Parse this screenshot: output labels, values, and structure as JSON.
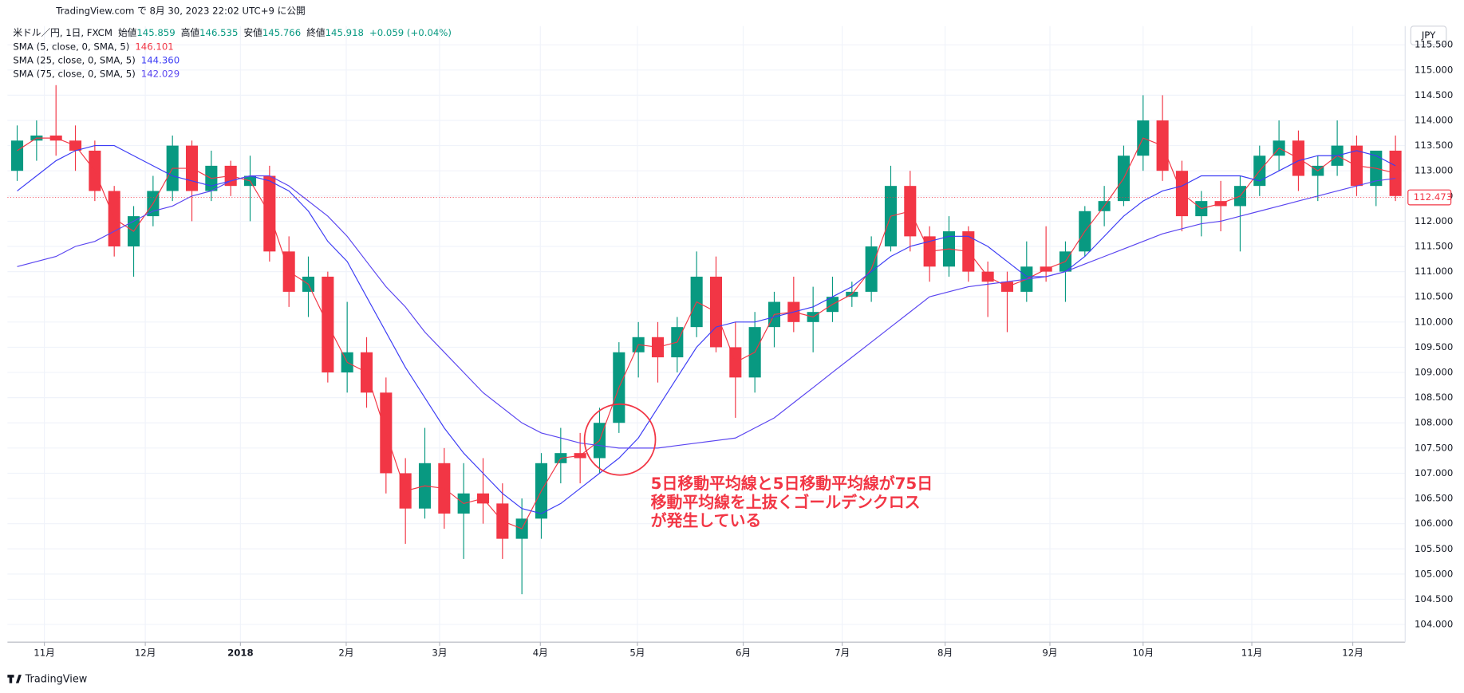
{
  "header": "TradingView.com で 8月 30, 2023 22:02 UTC+9 に公開",
  "footer": "TradingView",
  "chart_data": {
    "type": "candlestick",
    "title": "米ドル／円, 1日, FXCM",
    "stats": [
      {
        "label": "始値",
        "value": "145.859"
      },
      {
        "label": "高値",
        "value": "146.535"
      },
      {
        "label": "安値",
        "value": "145.766"
      },
      {
        "label": "終値",
        "value": "145.918"
      }
    ],
    "change": "+0.059 (+0.04%)",
    "currency": "JPY",
    "up_color": "#089981",
    "down_color": "#f23645",
    "open": [
      113.0,
      113.6,
      113.7,
      113.6,
      113.4,
      112.6,
      111.5,
      112.1,
      112.6,
      113.5,
      112.6,
      113.1,
      112.7,
      112.9,
      111.4,
      110.6,
      110.9,
      109.0,
      109.4,
      108.6,
      107.0,
      106.3,
      107.2,
      106.2,
      106.6,
      106.4,
      105.7,
      106.1,
      107.2,
      107.4,
      107.3,
      108.0,
      109.4,
      109.7,
      109.3,
      109.9,
      110.9,
      109.5,
      108.9,
      109.9,
      110.4,
      110.0,
      110.2,
      110.5,
      110.6,
      111.5,
      112.7,
      111.7,
      111.1,
      111.8,
      111.0,
      110.8,
      110.6,
      111.1,
      111.0,
      111.4,
      112.2,
      112.4,
      113.3,
      114.0,
      113.0,
      112.1,
      112.4,
      112.3,
      112.7,
      113.3,
      113.6,
      112.9,
      113.1,
      113.5,
      112.7,
      113.4
    ],
    "high": [
      113.9,
      114.0,
      114.7,
      113.9,
      113.6,
      112.7,
      112.3,
      112.9,
      113.7,
      113.6,
      113.4,
      113.2,
      113.3,
      113.1,
      111.7,
      111.3,
      111.0,
      110.4,
      109.7,
      108.9,
      107.3,
      107.9,
      107.5,
      107.2,
      107.3,
      106.8,
      106.5,
      107.4,
      107.9,
      107.8,
      108.3,
      109.6,
      110.0,
      110.0,
      110.1,
      111.4,
      111.3,
      110.0,
      110.2,
      110.6,
      110.9,
      110.7,
      110.9,
      110.8,
      111.7,
      113.1,
      113.0,
      111.9,
      112.1,
      111.9,
      111.2,
      111.0,
      111.6,
      111.9,
      111.6,
      112.3,
      112.7,
      113.5,
      114.5,
      114.5,
      113.2,
      112.6,
      112.8,
      112.9,
      113.5,
      114.0,
      113.8,
      113.3,
      114.0,
      113.7,
      113.3,
      113.7
    ],
    "low": [
      112.8,
      113.2,
      113.3,
      113.0,
      112.4,
      111.3,
      110.9,
      111.9,
      112.4,
      112.0,
      112.4,
      112.5,
      112.0,
      111.2,
      110.3,
      110.1,
      108.8,
      108.6,
      108.3,
      106.6,
      105.6,
      106.1,
      105.9,
      105.3,
      106.0,
      105.3,
      104.6,
      105.7,
      106.8,
      106.8,
      107.0,
      107.8,
      108.9,
      108.8,
      109.0,
      109.7,
      109.4,
      108.1,
      108.6,
      109.5,
      109.8,
      109.4,
      110.0,
      110.3,
      110.4,
      111.4,
      111.4,
      110.8,
      110.9,
      110.8,
      110.1,
      109.8,
      110.4,
      110.8,
      110.4,
      111.3,
      111.9,
      112.3,
      113.0,
      112.8,
      111.8,
      111.7,
      111.8,
      111.4,
      112.5,
      113.0,
      112.6,
      112.4,
      112.9,
      112.5,
      112.3,
      112.4
    ],
    "close": [
      113.6,
      113.7,
      113.6,
      113.4,
      112.6,
      111.5,
      112.1,
      112.6,
      113.5,
      112.6,
      113.1,
      112.7,
      112.9,
      111.4,
      110.6,
      110.9,
      109.0,
      109.4,
      108.6,
      107.0,
      106.3,
      107.2,
      106.2,
      106.6,
      106.4,
      105.7,
      106.1,
      107.2,
      107.4,
      107.3,
      108.0,
      109.4,
      109.7,
      109.3,
      109.9,
      110.9,
      109.5,
      108.9,
      109.9,
      110.4,
      110.0,
      110.2,
      110.5,
      110.6,
      111.5,
      112.7,
      111.7,
      111.1,
      111.8,
      111.0,
      110.8,
      110.6,
      111.1,
      111.0,
      111.4,
      112.2,
      112.4,
      113.3,
      114.0,
      113.0,
      112.1,
      112.4,
      112.3,
      112.7,
      113.3,
      113.6,
      112.9,
      113.1,
      113.5,
      112.7,
      113.4,
      112.5
    ],
    "overlays": [
      {
        "name": "SMA (5, close, 0, SMA, 5)",
        "legend_value": "146.101",
        "color": "#f23645",
        "values": [
          113.4,
          113.65,
          113.65,
          113.5,
          113.0,
          112.05,
          111.8,
          112.35,
          113.05,
          113.05,
          112.85,
          112.9,
          112.8,
          112.15,
          111.0,
          110.75,
          109.95,
          109.2,
          109.0,
          107.8,
          106.65,
          106.75,
          106.7,
          106.4,
          106.5,
          106.05,
          105.9,
          106.65,
          107.3,
          107.35,
          107.65,
          108.7,
          109.55,
          109.5,
          109.6,
          110.4,
          110.2,
          109.2,
          109.4,
          110.15,
          110.2,
          110.1,
          110.35,
          110.55,
          111.05,
          112.1,
          112.2,
          111.4,
          111.45,
          111.4,
          110.9,
          110.7,
          110.85,
          111.05,
          111.2,
          111.8,
          112.3,
          112.85,
          113.65,
          113.5,
          112.55,
          112.25,
          112.35,
          112.5,
          113.0,
          113.45,
          113.25,
          113.0,
          113.3,
          113.1,
          113.05,
          112.95
        ]
      },
      {
        "name": "SMA (25, close, 0, SMA, 5)",
        "legend_value": "144.360",
        "color": "#3d3df5",
        "values": [
          112.6,
          112.9,
          113.2,
          113.4,
          113.5,
          113.5,
          113.3,
          113.1,
          112.9,
          112.8,
          112.7,
          112.8,
          112.9,
          112.8,
          112.6,
          112.2,
          111.6,
          111.2,
          110.5,
          109.8,
          109.1,
          108.5,
          107.9,
          107.4,
          107.0,
          106.6,
          106.3,
          106.2,
          106.4,
          106.7,
          107.0,
          107.3,
          107.7,
          108.3,
          108.9,
          109.5,
          109.9,
          110.0,
          110.0,
          110.1,
          110.2,
          110.3,
          110.5,
          110.7,
          111.0,
          111.3,
          111.5,
          111.6,
          111.7,
          111.7,
          111.5,
          111.2,
          110.9,
          110.9,
          111.0,
          111.3,
          111.7,
          112.1,
          112.4,
          112.6,
          112.7,
          112.9,
          112.9,
          112.9,
          112.8,
          113.0,
          113.2,
          113.3,
          113.3,
          113.4,
          113.3,
          113.1
        ]
      },
      {
        "name": "SMA (75, close, 0, SMA, 5)",
        "legend_value": "142.029",
        "color": "#5a45f0",
        "values": [
          111.1,
          111.2,
          111.3,
          111.5,
          111.6,
          111.8,
          112.0,
          112.2,
          112.3,
          112.5,
          112.6,
          112.8,
          112.9,
          112.9,
          112.7,
          112.4,
          112.1,
          111.7,
          111.2,
          110.7,
          110.3,
          109.8,
          109.4,
          109.0,
          108.6,
          108.3,
          108.0,
          107.8,
          107.7,
          107.6,
          107.55,
          107.5,
          107.5,
          107.5,
          107.55,
          107.6,
          107.65,
          107.7,
          107.9,
          108.1,
          108.4,
          108.7,
          109.0,
          109.3,
          109.6,
          109.9,
          110.2,
          110.5,
          110.6,
          110.7,
          110.75,
          110.8,
          110.85,
          110.9,
          111.0,
          111.15,
          111.3,
          111.45,
          111.6,
          111.75,
          111.85,
          111.95,
          112.0,
          112.1,
          112.2,
          112.3,
          112.4,
          112.5,
          112.6,
          112.7,
          112.8,
          112.85
        ]
      }
    ],
    "last_price": 112.473,
    "xlim": [
      -0.5,
      71.5
    ],
    "xticks": [
      {
        "value": 1.4,
        "label": "11月"
      },
      {
        "value": 6.6,
        "label": "12月"
      },
      {
        "value": 11.5,
        "label": "2018"
      },
      {
        "value": 16.95,
        "label": "2月"
      },
      {
        "value": 21.76,
        "label": "3月"
      },
      {
        "value": 26.95,
        "label": "4月"
      },
      {
        "value": 31.95,
        "label": "5月"
      },
      {
        "value": 37.4,
        "label": "6月"
      },
      {
        "value": 42.5,
        "label": "7月"
      },
      {
        "value": 47.8,
        "label": "8月"
      },
      {
        "value": 53.2,
        "label": "9月"
      },
      {
        "value": 58.0,
        "label": "10月"
      },
      {
        "value": 63.6,
        "label": "11月"
      },
      {
        "value": 68.8,
        "label": "12月"
      }
    ],
    "ylim": [
      103.65,
      115.87
    ],
    "yticks": [
      {
        "value": 104,
        "label": "104.000"
      },
      {
        "value": 104.5,
        "label": "104.500"
      },
      {
        "value": 105,
        "label": "105.000"
      },
      {
        "value": 105.5,
        "label": "105.500"
      },
      {
        "value": 106,
        "label": "106.000"
      },
      {
        "value": 106.5,
        "label": "106.500"
      },
      {
        "value": 107,
        "label": "107.000"
      },
      {
        "value": 107.5,
        "label": "107.500"
      },
      {
        "value": 108,
        "label": "108.000"
      },
      {
        "value": 108.5,
        "label": "108.500"
      },
      {
        "value": 109,
        "label": "109.000"
      },
      {
        "value": 109.5,
        "label": "109.500"
      },
      {
        "value": 110,
        "label": "110.000"
      },
      {
        "value": 110.5,
        "label": "110.500"
      },
      {
        "value": 111,
        "label": "111.000"
      },
      {
        "value": 111.5,
        "label": "111.500"
      },
      {
        "value": 112,
        "label": "112.000"
      },
      {
        "value": 112.5,
        "label": "112.500"
      },
      {
        "value": 113,
        "label": "113.000"
      },
      {
        "value": 113.5,
        "label": "113.500"
      },
      {
        "value": 114,
        "label": "114.000"
      },
      {
        "value": 114.5,
        "label": "114.500"
      },
      {
        "value": 115,
        "label": "115.000"
      },
      {
        "value": 115.5,
        "label": "115.500"
      }
    ],
    "grid": true,
    "annotation": [
      "5日移動平均線と5日移動平均線が75日",
      "移動平均線を上抜くゴールデンクロス",
      "が発生している"
    ],
    "annotation_color": "#f23645"
  }
}
